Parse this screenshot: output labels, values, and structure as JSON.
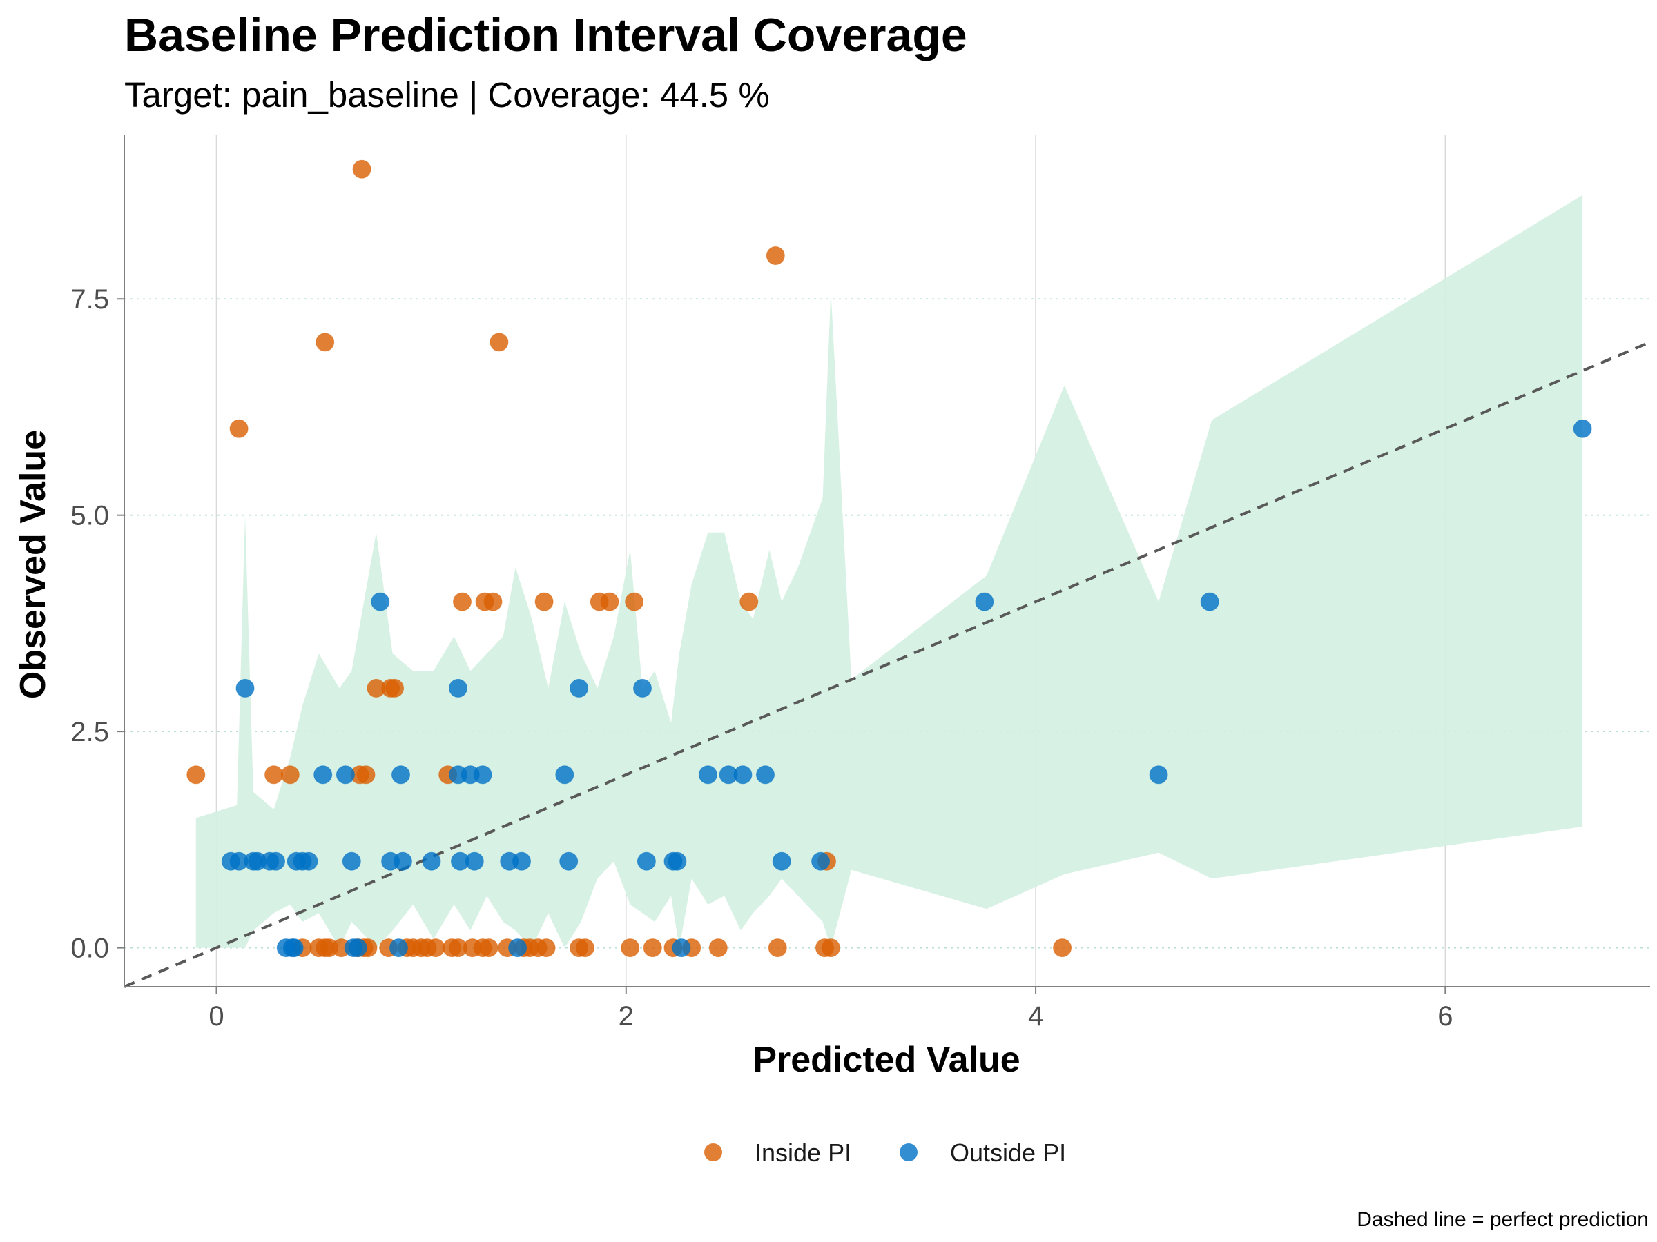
{
  "chart_data": {
    "type": "scatter",
    "title": "Baseline Prediction Interval Coverage",
    "subtitle": "Target: pain_baseline | Coverage: 44.5 %",
    "xlabel": "Predicted Value",
    "ylabel": "Observed Value",
    "caption": "Dashed line = perfect prediction",
    "xlim": [
      -0.45,
      7.0
    ],
    "ylim": [
      -0.45,
      9.4
    ],
    "x_ticks": [
      0,
      2,
      4,
      6
    ],
    "x_tick_labels": [
      "0",
      "2",
      "4",
      "6"
    ],
    "y_ticks": [
      0,
      2.5,
      5,
      7.5
    ],
    "y_tick_labels": [
      "0.0",
      "2.5",
      "5.0",
      "7.5"
    ],
    "legend_position": "bottom",
    "reference_line": {
      "slope": 1,
      "intercept": 0,
      "style": "dashed",
      "color": "#595959"
    },
    "colors": {
      "inside": "#D95F02",
      "outside": "#0072C6",
      "band": "#D3EFE1",
      "grid": "#d9d9d9",
      "hgrid": "#b8dfd6",
      "axis": "#7f7f7f"
    },
    "band": {
      "name": "Prediction interval",
      "x": [
        -0.1,
        0.1,
        0.14,
        0.18,
        0.28,
        0.36,
        0.42,
        0.5,
        0.6,
        0.66,
        0.78,
        0.86,
        0.96,
        1.06,
        1.16,
        1.24,
        1.32,
        1.4,
        1.46,
        1.54,
        1.62,
        1.7,
        1.78,
        1.86,
        1.94,
        2.02,
        2.08,
        2.14,
        2.22,
        2.26,
        2.32,
        2.4,
        2.48,
        2.56,
        2.62,
        2.7,
        2.76,
        2.84,
        2.96,
        3.0,
        3.1,
        3.76,
        4.14,
        4.6,
        4.86,
        6.67
      ],
      "upper": [
        1.5,
        1.65,
        5.0,
        1.8,
        1.6,
        2.2,
        2.8,
        3.4,
        3.0,
        3.2,
        4.8,
        3.4,
        3.2,
        3.2,
        3.6,
        3.2,
        3.4,
        3.6,
        4.4,
        3.8,
        3.0,
        4.0,
        3.4,
        3.0,
        3.6,
        4.6,
        3.0,
        3.2,
        2.6,
        3.4,
        4.2,
        4.8,
        4.8,
        4.0,
        3.8,
        4.6,
        4.0,
        4.4,
        5.2,
        7.6,
        3.1,
        4.3,
        6.5,
        4.0,
        6.1,
        8.7
      ],
      "lower": [
        0.0,
        0.0,
        0.0,
        0.2,
        0.4,
        0.5,
        0.3,
        0.4,
        0.0,
        0.3,
        0.0,
        0.2,
        0.5,
        0.1,
        0.5,
        0.2,
        0.6,
        0.3,
        0.2,
        0.0,
        0.4,
        0.0,
        0.3,
        0.8,
        1.0,
        0.5,
        0.4,
        0.3,
        0.6,
        0.0,
        0.8,
        0.5,
        0.6,
        0.2,
        0.4,
        0.6,
        0.8,
        0.6,
        0.3,
        0.0,
        0.9,
        0.45,
        0.85,
        1.1,
        0.8,
        1.4
      ]
    },
    "series": [
      {
        "name": "Inside PI",
        "points": [
          [
            -0.1,
            2
          ],
          [
            0.11,
            6
          ],
          [
            0.28,
            2
          ],
          [
            0.36,
            2
          ],
          [
            0.53,
            7
          ],
          [
            0.71,
            9
          ],
          [
            0.7,
            2
          ],
          [
            0.73,
            2
          ],
          [
            0.78,
            3
          ],
          [
            0.85,
            3
          ],
          [
            0.87,
            3
          ],
          [
            1.13,
            2
          ],
          [
            1.2,
            4
          ],
          [
            1.31,
            4
          ],
          [
            1.35,
            4
          ],
          [
            1.38,
            7
          ],
          [
            1.6,
            4
          ],
          [
            1.87,
            4
          ],
          [
            1.92,
            4
          ],
          [
            2.04,
            4
          ],
          [
            2.6,
            4
          ],
          [
            2.73,
            8
          ],
          [
            2.98,
            1
          ],
          [
            0.42,
            0
          ],
          [
            0.5,
            0
          ],
          [
            0.53,
            0
          ],
          [
            0.55,
            0
          ],
          [
            0.61,
            0
          ],
          [
            0.69,
            0
          ],
          [
            0.72,
            0
          ],
          [
            0.74,
            0
          ],
          [
            0.84,
            0
          ],
          [
            0.93,
            0
          ],
          [
            0.96,
            0
          ],
          [
            1.0,
            0
          ],
          [
            1.03,
            0
          ],
          [
            1.07,
            0
          ],
          [
            1.15,
            0
          ],
          [
            1.18,
            0
          ],
          [
            1.25,
            0
          ],
          [
            1.3,
            0
          ],
          [
            1.33,
            0
          ],
          [
            1.42,
            0
          ],
          [
            1.5,
            0
          ],
          [
            1.53,
            0
          ],
          [
            1.57,
            0
          ],
          [
            1.61,
            0
          ],
          [
            1.77,
            0
          ],
          [
            1.8,
            0
          ],
          [
            2.02,
            0
          ],
          [
            2.13,
            0
          ],
          [
            2.23,
            0
          ],
          [
            2.32,
            0
          ],
          [
            2.45,
            0
          ],
          [
            2.74,
            0
          ],
          [
            2.97,
            0
          ],
          [
            3.0,
            0
          ],
          [
            4.13,
            0
          ]
        ]
      },
      {
        "name": "Outside PI",
        "points": [
          [
            0.14,
            3
          ],
          [
            0.8,
            4
          ],
          [
            1.18,
            3
          ],
          [
            1.77,
            3
          ],
          [
            2.08,
            3
          ],
          [
            3.75,
            4
          ],
          [
            4.85,
            4
          ],
          [
            6.67,
            6
          ],
          [
            0.52,
            2
          ],
          [
            0.63,
            2
          ],
          [
            0.9,
            2
          ],
          [
            1.18,
            2
          ],
          [
            1.24,
            2
          ],
          [
            1.3,
            2
          ],
          [
            1.7,
            2
          ],
          [
            2.4,
            2
          ],
          [
            2.5,
            2
          ],
          [
            2.57,
            2
          ],
          [
            2.68,
            2
          ],
          [
            4.6,
            2
          ],
          [
            0.07,
            1
          ],
          [
            0.11,
            1
          ],
          [
            0.18,
            1
          ],
          [
            0.2,
            1
          ],
          [
            0.26,
            1
          ],
          [
            0.29,
            1
          ],
          [
            0.39,
            1
          ],
          [
            0.42,
            1
          ],
          [
            0.45,
            1
          ],
          [
            0.66,
            1
          ],
          [
            0.85,
            1
          ],
          [
            0.91,
            1
          ],
          [
            1.05,
            1
          ],
          [
            1.19,
            1
          ],
          [
            1.26,
            1
          ],
          [
            1.43,
            1
          ],
          [
            1.49,
            1
          ],
          [
            1.72,
            1
          ],
          [
            2.1,
            1
          ],
          [
            2.23,
            1
          ],
          [
            2.25,
            1
          ],
          [
            2.76,
            1
          ],
          [
            2.95,
            1
          ],
          [
            0.34,
            0
          ],
          [
            0.37,
            0
          ],
          [
            0.38,
            0
          ],
          [
            0.67,
            0
          ],
          [
            0.69,
            0
          ],
          [
            0.89,
            0
          ],
          [
            1.47,
            0
          ],
          [
            2.27,
            0
          ]
        ]
      }
    ]
  }
}
